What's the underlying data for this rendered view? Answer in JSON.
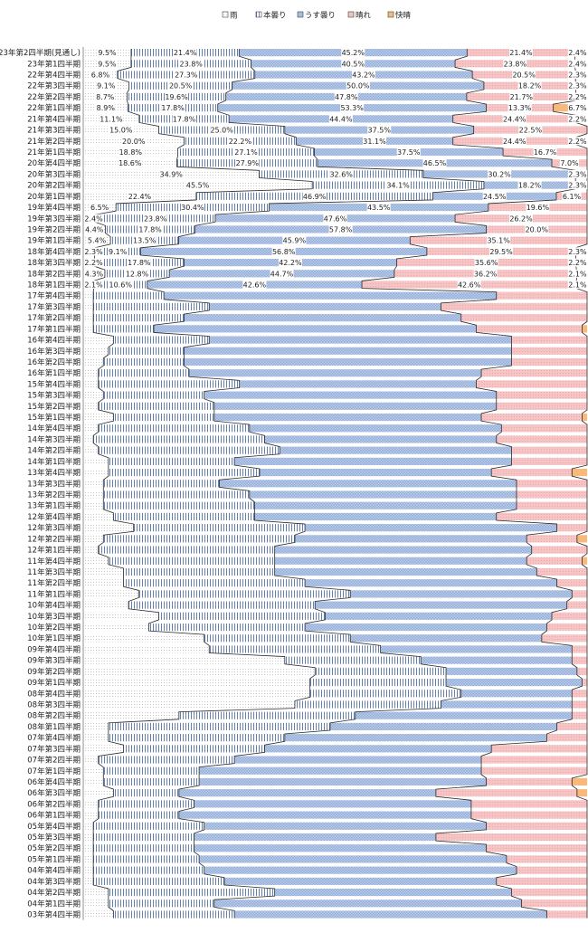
{
  "chart_data": {
    "type": "bar",
    "stacked": "100%",
    "orientation": "horizontal",
    "legend_position": "top",
    "series": [
      {
        "name": "雨",
        "color": "#ffffff",
        "pattern": "dots"
      },
      {
        "name": "本曇り",
        "color": "#ffffff",
        "pattern": "vertical-lines"
      },
      {
        "name": "うす曇り",
        "color": "#b4c7e7",
        "pattern": "crosshatch"
      },
      {
        "name": "晴れ",
        "color": "#f4b8b8",
        "pattern": "dots"
      },
      {
        "name": "快晴",
        "color": "#f8b97a",
        "pattern": "solid"
      }
    ],
    "categories": [
      "23年第2四半期(見通し)",
      "23年第1四半期",
      "22年第4四半期",
      "22年第3四半期",
      "22年第2四半期",
      "22年第1四半期",
      "21年第4四半期",
      "21年第3四半期",
      "21年第2四半期",
      "21年第1四半期",
      "20年第4四半期",
      "20年第3四半期",
      "20年第2四半期",
      "20年第1四半期",
      "19年第4四半期",
      "19年第3四半期",
      "19年第2四半期",
      "19年第1四半期",
      "18年第4四半期",
      "18年第3四半期",
      "18年第2四半期",
      "18年第1四半期",
      "17年第4四半期",
      "17年第3四半期",
      "17年第2四半期",
      "17年第1四半期",
      "16年第4四半期",
      "16年第3四半期",
      "16年第2四半期",
      "16年第1四半期",
      "15年第4四半期",
      "15年第3四半期",
      "15年第2四半期",
      "15年第1四半期",
      "14年第4四半期",
      "14年第3四半期",
      "14年第2四半期",
      "14年第1四半期",
      "13年第4四半期",
      "13年第3四半期",
      "13年第2四半期",
      "13年第1四半期",
      "12年第4四半期",
      "12年第3四半期",
      "12年第2四半期",
      "12年第1四半期",
      "11年第4四半期",
      "11年第3四半期",
      "11年第2四半期",
      "11年第1四半期",
      "10年第4四半期",
      "10年第3四半期",
      "10年第2四半期",
      "10年第1四半期",
      "09年第4四半期",
      "09年第3四半期",
      "09年第2四半期",
      "09年第1四半期",
      "08年第4四半期",
      "08年第3四半期",
      "08年第2四半期",
      "08年第1四半期",
      "07年第4四半期",
      "07年第3四半期",
      "07年第2四半期",
      "07年第1四半期",
      "06年第4四半期",
      "06年第3四半期",
      "06年第2四半期",
      "06年第1四半期",
      "05年第4四半期",
      "05年第3四半期",
      "05年第2四半期",
      "05年第1四半期",
      "04年第4四半期",
      "04年第3四半期",
      "04年第2四半期",
      "04年第1四半期",
      "03年第4四半期"
    ],
    "rows": [
      [
        9.5,
        21.4,
        45.2,
        21.4,
        2.4
      ],
      [
        9.5,
        23.8,
        40.5,
        23.8,
        2.4
      ],
      [
        6.8,
        27.3,
        43.2,
        20.5,
        2.3
      ],
      [
        9.1,
        20.5,
        50.0,
        18.2,
        2.3
      ],
      [
        8.7,
        19.6,
        47.8,
        21.7,
        2.2
      ],
      [
        8.9,
        17.8,
        53.3,
        13.3,
        6.7
      ],
      [
        11.1,
        17.8,
        44.4,
        24.4,
        2.2
      ],
      [
        15.0,
        25.0,
        37.5,
        22.5,
        0
      ],
      [
        20.0,
        22.2,
        31.1,
        24.4,
        2.2
      ],
      [
        18.8,
        27.1,
        37.5,
        16.7,
        0
      ],
      [
        18.6,
        27.9,
        46.5,
        7.0,
        0
      ],
      [
        34.9,
        32.6,
        30.2,
        2.3,
        0
      ],
      [
        45.5,
        34.1,
        18.2,
        2.3,
        0
      ],
      [
        22.4,
        46.9,
        24.5,
        6.1,
        0
      ],
      [
        6.5,
        30.4,
        43.5,
        19.6,
        0
      ],
      [
        2.4,
        23.8,
        47.6,
        26.2,
        0
      ],
      [
        4.4,
        17.8,
        57.8,
        20.0,
        0
      ],
      [
        5.4,
        13.5,
        45.9,
        35.1,
        0
      ],
      [
        2.3,
        9.1,
        56.8,
        29.5,
        2.3
      ],
      [
        2.2,
        17.8,
        42.2,
        35.6,
        2.2
      ],
      [
        4.3,
        12.8,
        44.7,
        36.2,
        2.1
      ],
      [
        2.1,
        10.6,
        42.6,
        42.6,
        2.1
      ],
      [
        2.0,
        14.0,
        66.0,
        18.0,
        0
      ],
      [
        2.0,
        23.0,
        46.0,
        29.0,
        0
      ],
      [
        2.0,
        18.0,
        55.0,
        25.0,
        0
      ],
      [
        2.0,
        12.0,
        64.0,
        21.0,
        1.0
      ],
      [
        6.0,
        19.0,
        60.0,
        15.0,
        0
      ],
      [
        5.0,
        15.0,
        65.0,
        15.0,
        0
      ],
      [
        4.0,
        16.0,
        65.0,
        15.0,
        0
      ],
      [
        3.0,
        18.0,
        58.0,
        21.0,
        0
      ],
      [
        3.0,
        28.0,
        47.0,
        22.0,
        0
      ],
      [
        4.0,
        20.0,
        58.0,
        18.0,
        0
      ],
      [
        3.0,
        23.0,
        56.0,
        18.0,
        0
      ],
      [
        6.0,
        20.0,
        53.0,
        20.0,
        1.0
      ],
      [
        3.0,
        30.0,
        50.0,
        17.0,
        0
      ],
      [
        2.0,
        34.0,
        46.0,
        18.0,
        0
      ],
      [
        3.0,
        36.0,
        46.0,
        15.0,
        0
      ],
      [
        5.0,
        25.0,
        55.0,
        15.0,
        0
      ],
      [
        5.0,
        30.0,
        46.0,
        16.0,
        3.0
      ],
      [
        4.0,
        23.0,
        59.0,
        14.0,
        0
      ],
      [
        4.0,
        29.0,
        53.0,
        14.0,
        0
      ],
      [
        4.0,
        30.0,
        52.0,
        14.0,
        0
      ],
      [
        6.0,
        28.0,
        48.0,
        18.0,
        0
      ],
      [
        10.0,
        34.0,
        50.0,
        6.0,
        0
      ],
      [
        4.0,
        38.0,
        46.0,
        10.0,
        2.0
      ],
      [
        3.0,
        35.0,
        51.0,
        11.0,
        0
      ],
      [
        5.0,
        33.0,
        50.0,
        11.0,
        1.0
      ],
      [
        8.0,
        30.0,
        52.0,
        10.0,
        0
      ],
      [
        8.0,
        36.0,
        50.0,
        6.0,
        0
      ],
      [
        11.0,
        42.0,
        44.0,
        3.0,
        0
      ],
      [
        9.0,
        37.0,
        50.0,
        4.0,
        0
      ],
      [
        15.0,
        33.0,
        45.0,
        7.0,
        0
      ],
      [
        13.0,
        31.0,
        48.0,
        8.0,
        0
      ],
      [
        24.0,
        29.0,
        38.0,
        9.0,
        0
      ],
      [
        25.0,
        34.0,
        38.0,
        3.0,
        0
      ],
      [
        40.0,
        27.0,
        30.0,
        3.0,
        0
      ],
      [
        46.0,
        26.0,
        26.0,
        2.0,
        0
      ],
      [
        45.0,
        27.0,
        27.0,
        1.0,
        0
      ],
      [
        45.0,
        30.0,
        22.0,
        3.0,
        0
      ],
      [
        42.0,
        29.0,
        26.0,
        3.0,
        0
      ],
      [
        19.0,
        35.0,
        43.0,
        3.0,
        0
      ],
      [
        5.0,
        44.0,
        45.0,
        6.0,
        0
      ],
      [
        5.0,
        35.0,
        52.0,
        8.0,
        0
      ],
      [
        8.0,
        28.0,
        45.0,
        19.0,
        0
      ],
      [
        3.0,
        27.0,
        49.0,
        21.0,
        0
      ],
      [
        4.0,
        19.0,
        56.0,
        21.0,
        0
      ],
      [
        4.0,
        19.0,
        57.0,
        17.0,
        3.0
      ],
      [
        6.0,
        13.0,
        51.0,
        28.0,
        2.0
      ],
      [
        3.0,
        19.0,
        55.0,
        23.0,
        0
      ],
      [
        3.0,
        16.0,
        58.0,
        23.0,
        0
      ],
      [
        2.0,
        22.0,
        56.0,
        20.0,
        0
      ],
      [
        2.0,
        20.0,
        48.0,
        30.0,
        0
      ],
      [
        2.0,
        20.0,
        58.0,
        20.0,
        0
      ],
      [
        2.0,
        21.0,
        61.0,
        16.0,
        0
      ],
      [
        2.0,
        22.0,
        62.0,
        14.0,
        0
      ],
      [
        2.0,
        26.0,
        54.0,
        18.0,
        0
      ],
      [
        5.0,
        33.0,
        47.0,
        15.0,
        0
      ],
      [
        5.0,
        21.0,
        61.0,
        13.0,
        0
      ],
      [
        6.0,
        24.0,
        62.0,
        8.0,
        0
      ]
    ],
    "labeled_rows": 22
  }
}
